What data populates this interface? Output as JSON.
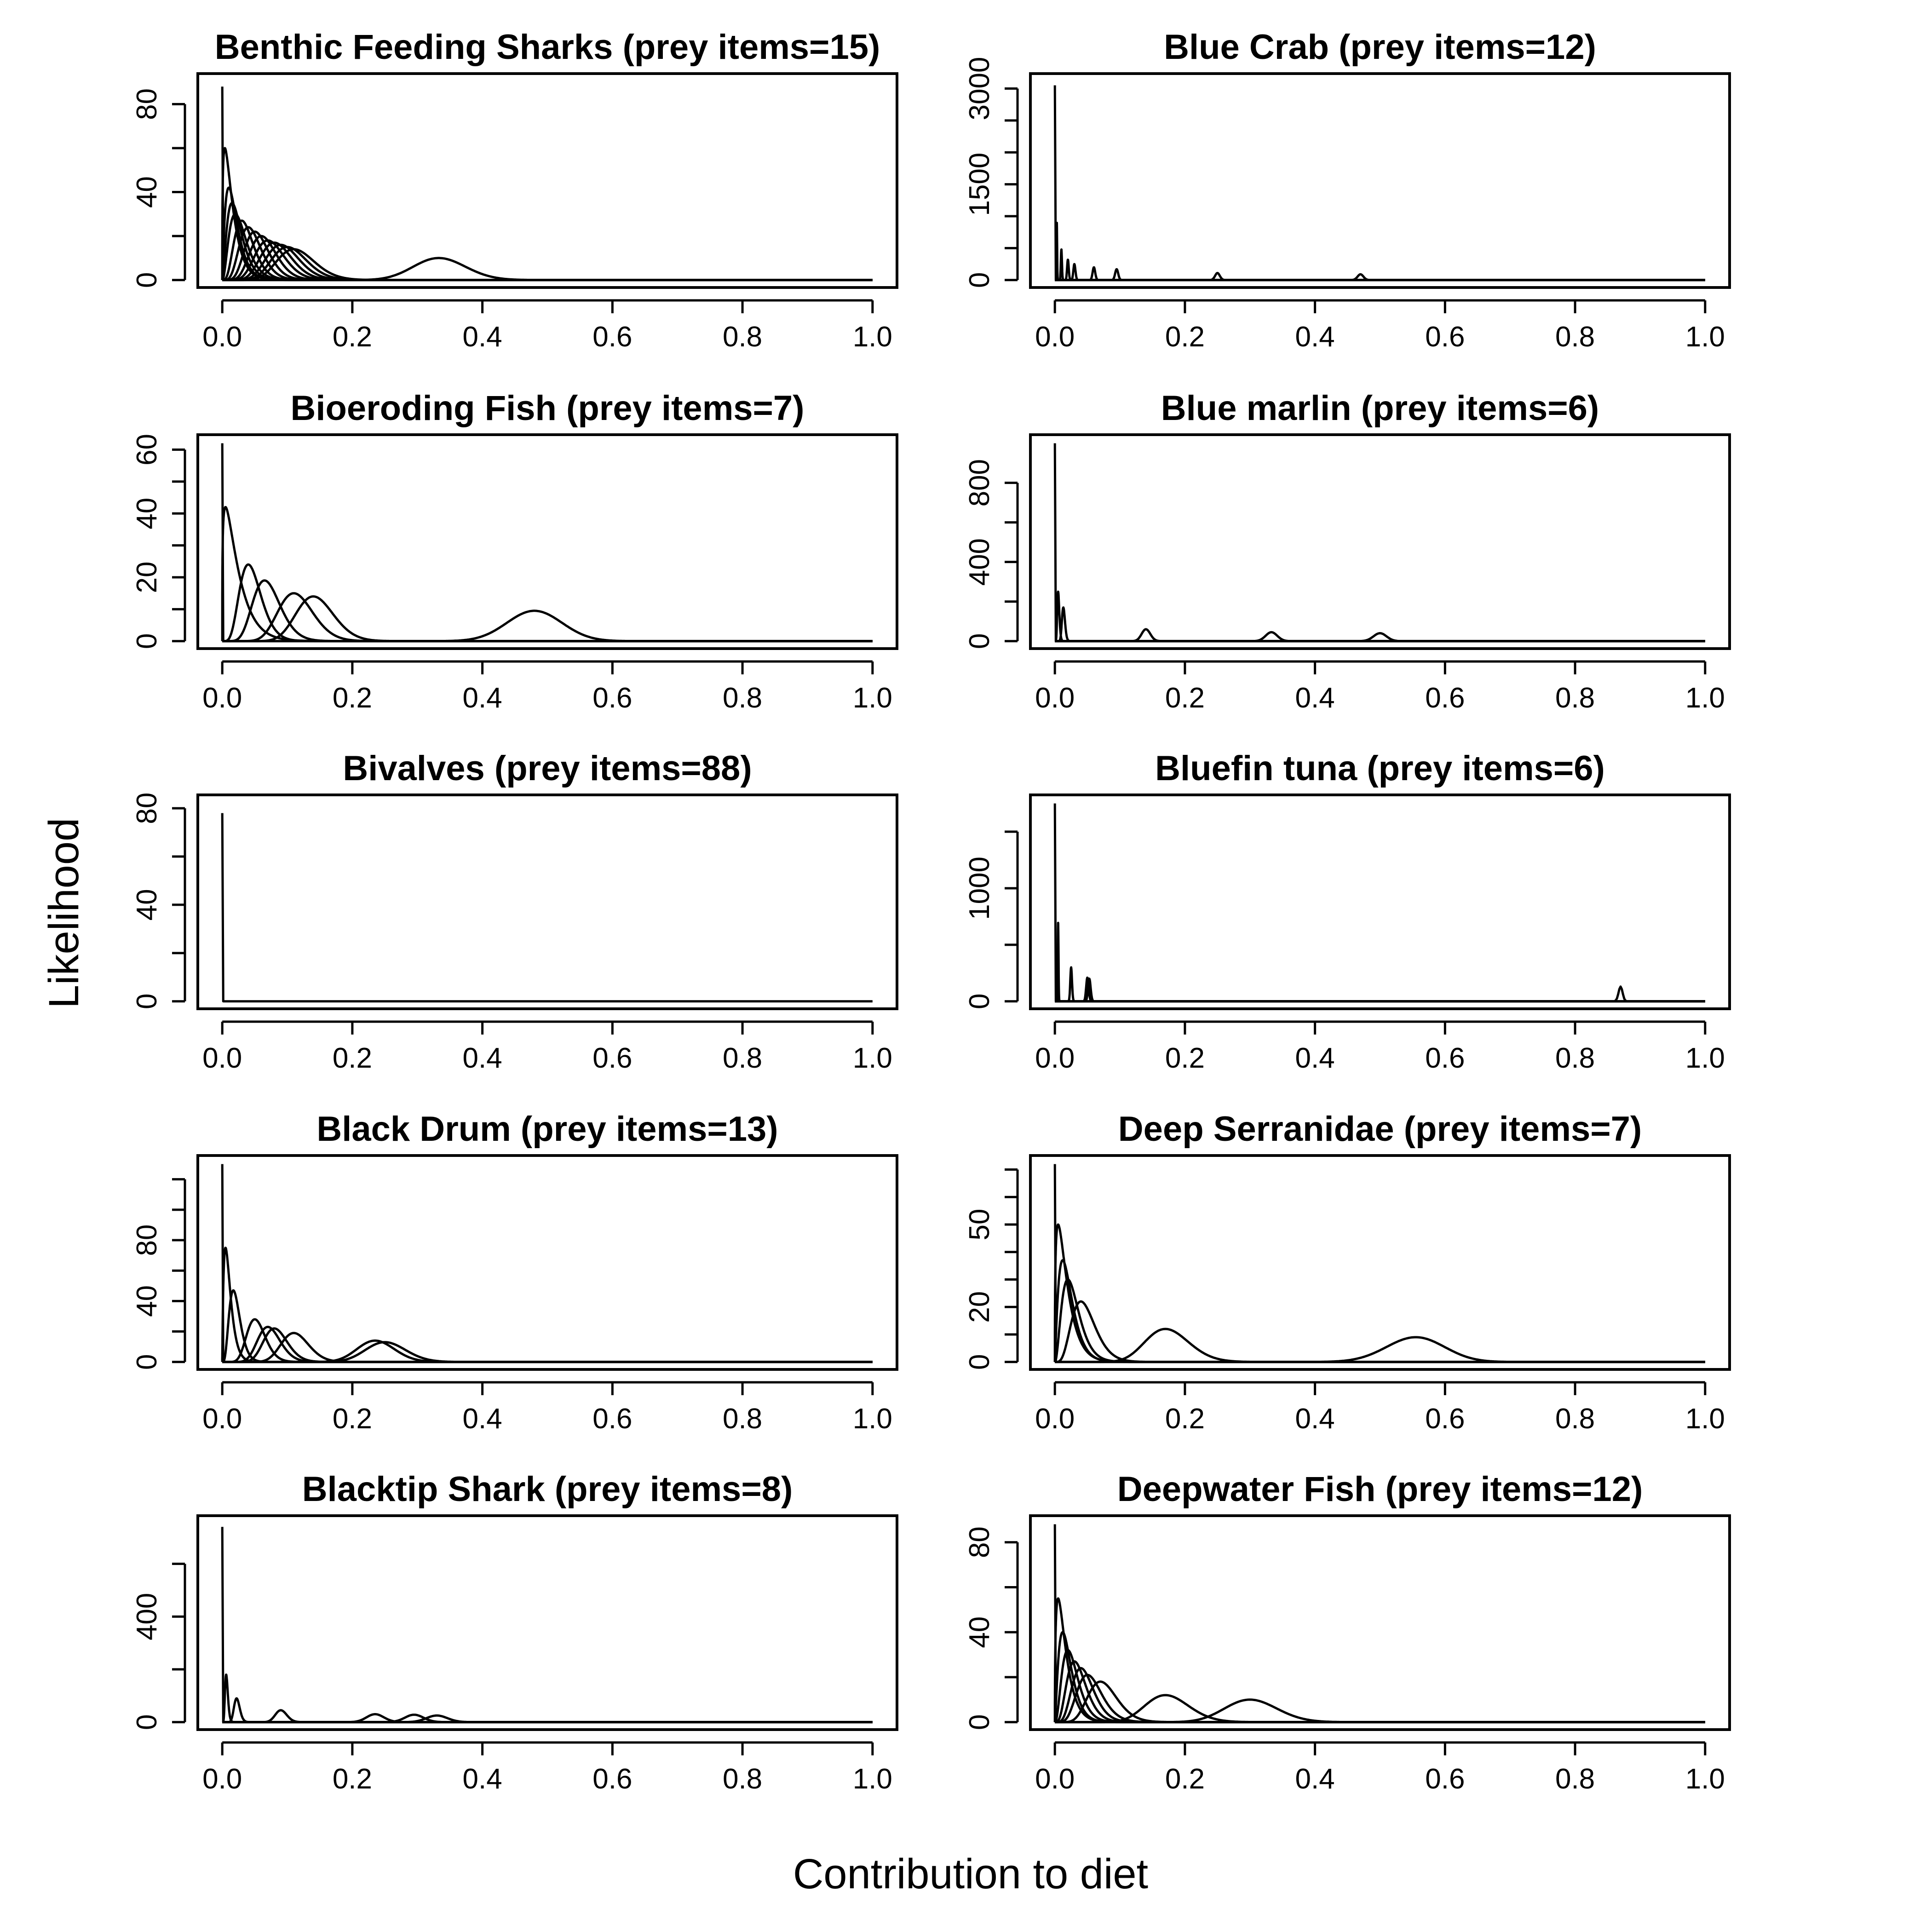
{
  "figure": {
    "xlabel": "Contribution to diet",
    "ylabel": "Likelihood"
  },
  "chart_data": [
    {
      "type": "line",
      "title": "Benthic Feeding Sharks (prey items=15)",
      "xlim": [
        0,
        1
      ],
      "xticks": [
        0.0,
        0.2,
        0.4,
        0.6,
        0.8,
        1.0
      ],
      "ylim": [
        0,
        90
      ],
      "yticks": [
        0,
        40,
        80
      ],
      "yminor": [
        20,
        60
      ],
      "curves": [
        {
          "mode": 0.0,
          "peak": 88
        },
        {
          "mode": 0.004,
          "peak": 60
        },
        {
          "mode": 0.01,
          "peak": 42
        },
        {
          "mode": 0.015,
          "peak": 35
        },
        {
          "mode": 0.02,
          "peak": 30
        },
        {
          "mode": 0.03,
          "peak": 27
        },
        {
          "mode": 0.04,
          "peak": 24
        },
        {
          "mode": 0.05,
          "peak": 22
        },
        {
          "mode": 0.06,
          "peak": 20
        },
        {
          "mode": 0.07,
          "peak": 18
        },
        {
          "mode": 0.08,
          "peak": 17
        },
        {
          "mode": 0.09,
          "peak": 16
        },
        {
          "mode": 0.1,
          "peak": 15
        },
        {
          "mode": 0.11,
          "peak": 14
        },
        {
          "mode": 0.333,
          "peak": 10
        }
      ]
    },
    {
      "type": "line",
      "title": "Blue Crab (prey items=12)",
      "xlim": [
        0,
        1
      ],
      "xticks": [
        0.0,
        0.2,
        0.4,
        0.6,
        0.8,
        1.0
      ],
      "ylim": [
        0,
        3100
      ],
      "yticks": [
        0,
        1500,
        3000
      ],
      "yminor": [
        500,
        1000,
        2000,
        2500
      ],
      "curves": [
        {
          "mode": 0.0,
          "peak": 3050
        },
        {
          "mode": 0.003,
          "peak": 900
        },
        {
          "mode": 0.01,
          "peak": 480
        },
        {
          "mode": 0.02,
          "peak": 320
        },
        {
          "mode": 0.03,
          "peak": 250
        },
        {
          "mode": 0.06,
          "peak": 200
        },
        {
          "mode": 0.095,
          "peak": 170
        },
        {
          "mode": 0.25,
          "peak": 110
        },
        {
          "mode": 0.47,
          "peak": 90
        }
      ]
    },
    {
      "type": "line",
      "title": "Bioeroding Fish (prey items=7)",
      "xlim": [
        0,
        1
      ],
      "xticks": [
        0.0,
        0.2,
        0.4,
        0.6,
        0.8,
        1.0
      ],
      "ylim": [
        0,
        62
      ],
      "yticks": [
        0,
        20,
        40,
        60
      ],
      "yminor": [
        10,
        30,
        50
      ],
      "curves": [
        {
          "mode": 0.0,
          "peak": 62
        },
        {
          "mode": 0.005,
          "peak": 42
        },
        {
          "mode": 0.04,
          "peak": 24
        },
        {
          "mode": 0.065,
          "peak": 19
        },
        {
          "mode": 0.11,
          "peak": 15
        },
        {
          "mode": 0.14,
          "peak": 14
        },
        {
          "mode": 0.48,
          "peak": 9.5
        }
      ]
    },
    {
      "type": "line",
      "title": "Blue marlin (prey items=6)",
      "xlim": [
        0,
        1
      ],
      "xticks": [
        0.0,
        0.2,
        0.4,
        0.6,
        0.8,
        1.0
      ],
      "ylim": [
        0,
        1000
      ],
      "yticks": [
        0,
        400,
        800
      ],
      "yminor": [
        200,
        600
      ],
      "curves": [
        {
          "mode": 0.0,
          "peak": 1000
        },
        {
          "mode": 0.005,
          "peak": 250
        },
        {
          "mode": 0.013,
          "peak": 170
        },
        {
          "mode": 0.14,
          "peak": 60
        },
        {
          "mode": 0.333,
          "peak": 45
        },
        {
          "mode": 0.5,
          "peak": 40
        }
      ]
    },
    {
      "type": "line",
      "title": "Bivalves (prey items=88)",
      "xlim": [
        0,
        1
      ],
      "xticks": [
        0.0,
        0.2,
        0.4,
        0.6,
        0.8,
        1.0
      ],
      "ylim": [
        0,
        82
      ],
      "yticks": [
        0,
        40,
        80
      ],
      "yminor": [
        20,
        60
      ],
      "curves": [
        {
          "mode": 0.0,
          "peak": 78
        }
      ]
    },
    {
      "type": "line",
      "title": "Bluefin tuna (prey items=6)",
      "xlim": [
        0,
        1
      ],
      "xticks": [
        0.0,
        0.2,
        0.4,
        0.6,
        0.8,
        1.0
      ],
      "ylim": [
        0,
        1750
      ],
      "yticks": [
        0,
        1000
      ],
      "yminor": [
        500,
        1500
      ],
      "curves": [
        {
          "mode": 0.0,
          "peak": 1750
        },
        {
          "mode": 0.005,
          "peak": 700
        },
        {
          "mode": 0.025,
          "peak": 300
        },
        {
          "mode": 0.05,
          "peak": 210
        },
        {
          "mode": 0.053,
          "peak": 200
        },
        {
          "mode": 0.87,
          "peak": 130
        }
      ]
    },
    {
      "type": "line",
      "title": "Black Drum (prey items=13)",
      "xlim": [
        0,
        1
      ],
      "xticks": [
        0.0,
        0.2,
        0.4,
        0.6,
        0.8,
        1.0
      ],
      "ylim": [
        0,
        130
      ],
      "yticks": [
        0,
        40,
        80
      ],
      "yminor": [
        20,
        60,
        100,
        120
      ],
      "curves": [
        {
          "mode": 0.0,
          "peak": 130
        },
        {
          "mode": 0.005,
          "peak": 75
        },
        {
          "mode": 0.017,
          "peak": 47
        },
        {
          "mode": 0.05,
          "peak": 28
        },
        {
          "mode": 0.07,
          "peak": 23
        },
        {
          "mode": 0.08,
          "peak": 22
        },
        {
          "mode": 0.11,
          "peak": 19
        },
        {
          "mode": 0.235,
          "peak": 14
        },
        {
          "mode": 0.25,
          "peak": 13
        }
      ]
    },
    {
      "type": "line",
      "title": "Deep Serranidae (prey items=7)",
      "xlim": [
        0,
        1
      ],
      "xticks": [
        0.0,
        0.2,
        0.4,
        0.6,
        0.8,
        1.0
      ],
      "ylim": [
        0,
        72
      ],
      "yticks": [
        0,
        20,
        50
      ],
      "yminor": [
        10,
        30,
        40,
        60,
        70
      ],
      "curves": [
        {
          "mode": 0.0,
          "peak": 72
        },
        {
          "mode": 0.005,
          "peak": 50
        },
        {
          "mode": 0.012,
          "peak": 37
        },
        {
          "mode": 0.02,
          "peak": 30
        },
        {
          "mode": 0.04,
          "peak": 22
        },
        {
          "mode": 0.17,
          "peak": 12
        },
        {
          "mode": 0.555,
          "peak": 9
        }
      ]
    },
    {
      "type": "line",
      "title": "Blacktip Shark (prey items=8)",
      "xlim": [
        0,
        1
      ],
      "xticks": [
        0.0,
        0.2,
        0.4,
        0.6,
        0.8,
        1.0
      ],
      "ylim": [
        0,
        750
      ],
      "yticks": [
        0,
        400
      ],
      "yminor": [
        200,
        600
      ],
      "curves": [
        {
          "mode": 0.0,
          "peak": 740
        },
        {
          "mode": 0.006,
          "peak": 180
        },
        {
          "mode": 0.022,
          "peak": 90
        },
        {
          "mode": 0.09,
          "peak": 45
        },
        {
          "mode": 0.235,
          "peak": 30
        },
        {
          "mode": 0.295,
          "peak": 28
        },
        {
          "mode": 0.33,
          "peak": 25
        }
      ]
    },
    {
      "type": "line",
      "title": "Deepwater Fish (prey items=12)",
      "xlim": [
        0,
        1
      ],
      "xticks": [
        0.0,
        0.2,
        0.4,
        0.6,
        0.8,
        1.0
      ],
      "ylim": [
        0,
        88
      ],
      "yticks": [
        0,
        40,
        80
      ],
      "yminor": [
        20,
        60
      ],
      "curves": [
        {
          "mode": 0.0,
          "peak": 88
        },
        {
          "mode": 0.005,
          "peak": 55
        },
        {
          "mode": 0.012,
          "peak": 40
        },
        {
          "mode": 0.02,
          "peak": 32
        },
        {
          "mode": 0.03,
          "peak": 27
        },
        {
          "mode": 0.04,
          "peak": 24
        },
        {
          "mode": 0.05,
          "peak": 21
        },
        {
          "mode": 0.07,
          "peak": 18
        },
        {
          "mode": 0.17,
          "peak": 12
        },
        {
          "mode": 0.3,
          "peak": 10
        }
      ]
    }
  ]
}
